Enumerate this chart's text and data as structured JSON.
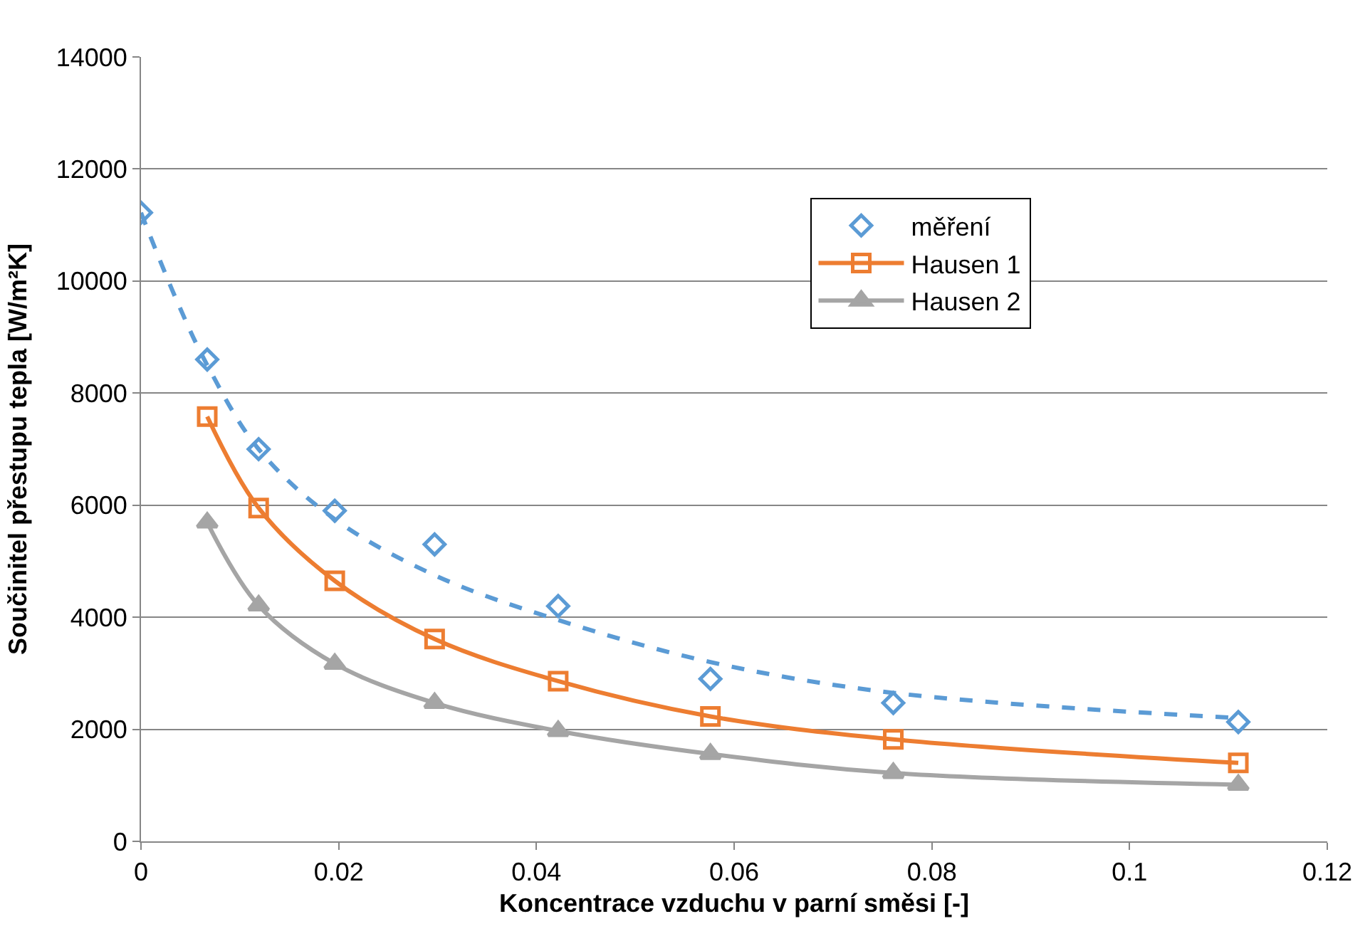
{
  "chart_data": {
    "type": "line",
    "xlabel": "Koncentrace vzduchu v parní směsi [-]",
    "ylabel": "Součinitel přestupu tepla [W/m²K]",
    "x": [
      0.0067,
      0.0119,
      0.0196,
      0.0297,
      0.0422,
      0.0576,
      0.0761,
      0.111
    ],
    "series": [
      {
        "name": "měření",
        "type": "scatter",
        "marker": "diamond",
        "color": "#5b9bd5",
        "x": [
          0,
          0.0067,
          0.0119,
          0.0196,
          0.0297,
          0.0422,
          0.0576,
          0.0761,
          0.111
        ],
        "values": [
          11220,
          8600,
          7000,
          5900,
          5300,
          4200,
          2900,
          2470,
          2130
        ]
      },
      {
        "type": "line",
        "line_style": "dashed",
        "marker": "none",
        "color": "#5b9bd5",
        "x": [
          0,
          0.0035,
          0.0067,
          0.0119,
          0.0196,
          0.0297,
          0.0422,
          0.0576,
          0.0761,
          0.111
        ],
        "values": [
          11220,
          9700,
          8500,
          7000,
          5750,
          4750,
          3950,
          3200,
          2650,
          2200
        ]
      },
      {
        "name": "Hausen 1",
        "line_style": "solid",
        "marker": "square",
        "color": "#ed7d31",
        "values": [
          7580,
          5950,
          4650,
          3610,
          2860,
          2230,
          1820,
          1400
        ]
      },
      {
        "name": "Hausen 2",
        "line_style": "solid",
        "marker": "triangle",
        "color": "#a5a5a5",
        "values": [
          5690,
          4210,
          3170,
          2470,
          1970,
          1560,
          1220,
          1010
        ]
      }
    ],
    "xlim": [
      0,
      0.12
    ],
    "xticks": [
      0,
      0.02,
      0.04,
      0.06,
      0.08,
      0.1,
      0.12
    ],
    "ylim": [
      0,
      14000
    ],
    "yticks": [
      0,
      2000,
      4000,
      6000,
      8000,
      10000,
      12000,
      14000
    ],
    "grid": "y",
    "legend": "top right"
  }
}
